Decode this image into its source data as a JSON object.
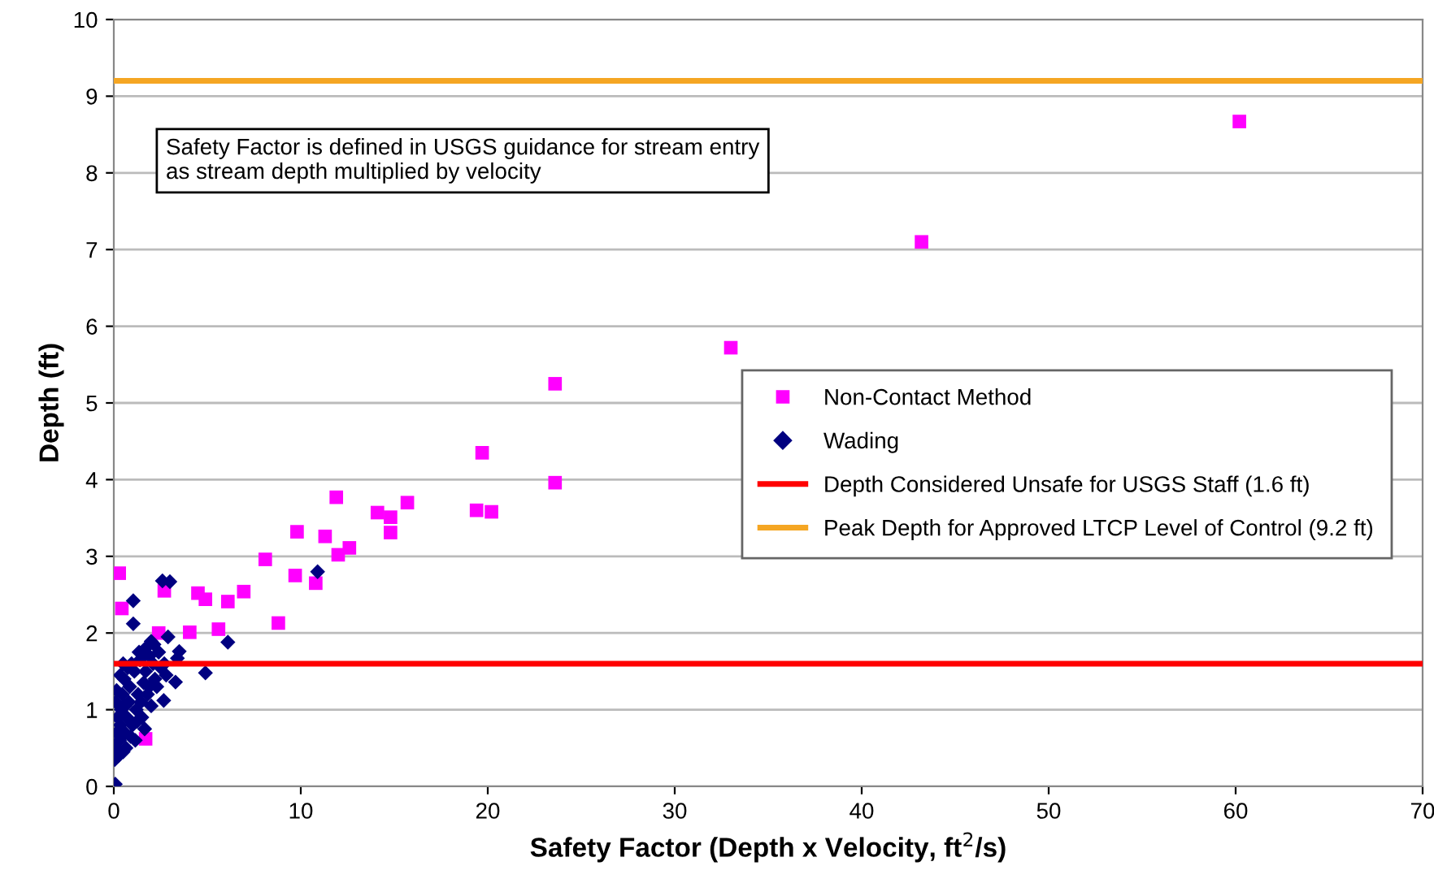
{
  "chart_data": {
    "type": "scatter",
    "xlabel": "Safety Factor (Depth x Velocity, ft$^{2}$/s)",
    "ylabel": "Depth (ft)",
    "xlim": [
      0,
      70
    ],
    "ylim": [
      0,
      10
    ],
    "xticks": [
      0,
      10,
      20,
      30,
      40,
      50,
      60,
      70
    ],
    "yticks": [
      0,
      1,
      2,
      3,
      4,
      5,
      6,
      7,
      8,
      9,
      10
    ],
    "grid": "y",
    "legend": "right",
    "annotations": [
      "Safety Factor is defined in USGS guidance for stream entry as stream depth multiplied by velocity"
    ],
    "series": [
      {
        "name": "Non-Contact Method",
        "color": "#ff00ff",
        "marker": "square",
        "x": [
          0.29,
          0.43,
          1.7,
          2.4,
          2.7,
          4.06,
          4.5,
          4.9,
          5.6,
          6.1,
          6.95,
          8.1,
          8.8,
          9.7,
          9.8,
          10.8,
          11.3,
          11.9,
          12.0,
          12.6,
          14.1,
          14.8,
          14.8,
          15.7,
          19.4,
          19.7,
          20.2,
          23.6,
          23.6,
          33.0,
          43.2,
          60.2
        ],
        "values": [
          2.78,
          2.32,
          0.62,
          2.0,
          2.55,
          2.01,
          2.52,
          2.44,
          2.05,
          2.41,
          2.54,
          2.96,
          2.13,
          2.75,
          3.32,
          2.65,
          3.26,
          3.77,
          3.02,
          3.11,
          3.57,
          3.51,
          3.31,
          3.7,
          3.6,
          4.35,
          3.58,
          3.96,
          5.25,
          5.72,
          7.1,
          8.67
        ]
      },
      {
        "name": "Wading",
        "color": "#000080",
        "marker": "diamond",
        "x": [
          2.6,
          3.0,
          1.04,
          1.04,
          6.1,
          4.9,
          10.9,
          2.9,
          3.5,
          3.4,
          2.67,
          3.3,
          2.0,
          1.7,
          0.08,
          0.05,
          0.1,
          0.15,
          0.2,
          0.1,
          0.25,
          0.3,
          0.15,
          0.35,
          0.4,
          0.5,
          0.45,
          0.6,
          0.55,
          0.7,
          0.65,
          0.8,
          0.75,
          0.9,
          0.85,
          1.0,
          1.1,
          1.2,
          1.3,
          1.15,
          1.4,
          1.5,
          1.6,
          1.45,
          1.7,
          1.8,
          1.9,
          2.0,
          2.1,
          2.2,
          2.3,
          2.5,
          1.25,
          0.95,
          0.6,
          0.35,
          1.65,
          2.4,
          2.8,
          1.9,
          1.35,
          0.5,
          2.15,
          2.7
        ],
        "values": [
          2.68,
          2.67,
          2.42,
          2.12,
          1.88,
          1.48,
          2.8,
          1.95,
          1.76,
          1.67,
          1.12,
          1.36,
          1.89,
          1.8,
          0.03,
          0.35,
          0.5,
          0.7,
          0.9,
          1.1,
          0.4,
          0.6,
          1.25,
          0.8,
          1.0,
          0.45,
          1.2,
          0.7,
          1.4,
          0.9,
          0.5,
          1.1,
          1.55,
          0.65,
          1.3,
          0.8,
          1.5,
          1.0,
          1.2,
          0.6,
          1.65,
          0.9,
          1.35,
          1.1,
          1.5,
          1.2,
          1.7,
          1.05,
          1.6,
          1.4,
          1.3,
          1.55,
          0.85,
          1.6,
          1.05,
          1.45,
          0.75,
          1.75,
          1.45,
          1.3,
          1.75,
          1.6,
          1.85,
          1.6
        ]
      }
    ],
    "ref_lines": [
      {
        "axis": "y",
        "value": 1.6,
        "label": "Depth Considered Unsafe for USGS Staff (1.6 ft)",
        "color": "#ff0000"
      },
      {
        "axis": "y",
        "value": 9.2,
        "label": "Peak Depth for Approved LTCP Level of Control (9.2 ft)",
        "color": "#f5a623"
      }
    ]
  }
}
